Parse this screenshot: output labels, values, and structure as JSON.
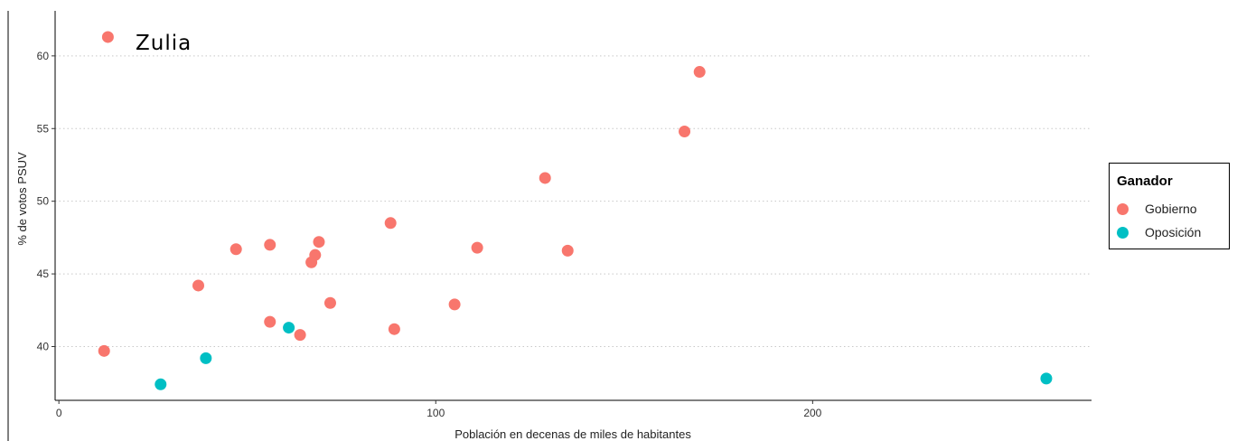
{
  "chart_data": {
    "type": "scatter",
    "title": "",
    "annotation": "Zulia",
    "xlabel": "Población en decenas de miles de habitantes",
    "ylabel": "% de votos PSUV",
    "xlim": [
      -1,
      274
    ],
    "ylim": [
      36.3,
      63.1
    ],
    "x_ticks": [
      0,
      100,
      200
    ],
    "y_ticks": [
      40,
      45,
      50,
      55,
      60
    ],
    "grid": "horizontal dotted",
    "legend": {
      "title": "Ganador",
      "position": "right",
      "entries": [
        {
          "name": "Gobierno",
          "color": "#F8766D"
        },
        {
          "name": "Oposición",
          "color": "#00BFC4"
        }
      ]
    },
    "series": [
      {
        "name": "Gobierno",
        "color": "#F8766D",
        "points": [
          {
            "x": 13,
            "y": 61.3
          },
          {
            "x": 170,
            "y": 58.9
          },
          {
            "x": 166,
            "y": 54.8
          },
          {
            "x": 129,
            "y": 51.6
          },
          {
            "x": 88,
            "y": 48.5
          },
          {
            "x": 69,
            "y": 47.2
          },
          {
            "x": 56,
            "y": 47.0
          },
          {
            "x": 47,
            "y": 46.7
          },
          {
            "x": 111,
            "y": 46.8
          },
          {
            "x": 135,
            "y": 46.6
          },
          {
            "x": 68,
            "y": 46.3
          },
          {
            "x": 67,
            "y": 45.8
          },
          {
            "x": 37,
            "y": 44.2
          },
          {
            "x": 72,
            "y": 43.0
          },
          {
            "x": 105,
            "y": 42.9
          },
          {
            "x": 56,
            "y": 41.7
          },
          {
            "x": 89,
            "y": 41.2
          },
          {
            "x": 64,
            "y": 40.8
          },
          {
            "x": 12,
            "y": 39.7
          }
        ]
      },
      {
        "name": "Oposición",
        "color": "#00BFC4",
        "points": [
          {
            "x": 61,
            "y": 41.3
          },
          {
            "x": 39,
            "y": 39.2
          },
          {
            "x": 27,
            "y": 37.4
          },
          {
            "x": 262,
            "y": 37.8
          }
        ]
      }
    ]
  }
}
